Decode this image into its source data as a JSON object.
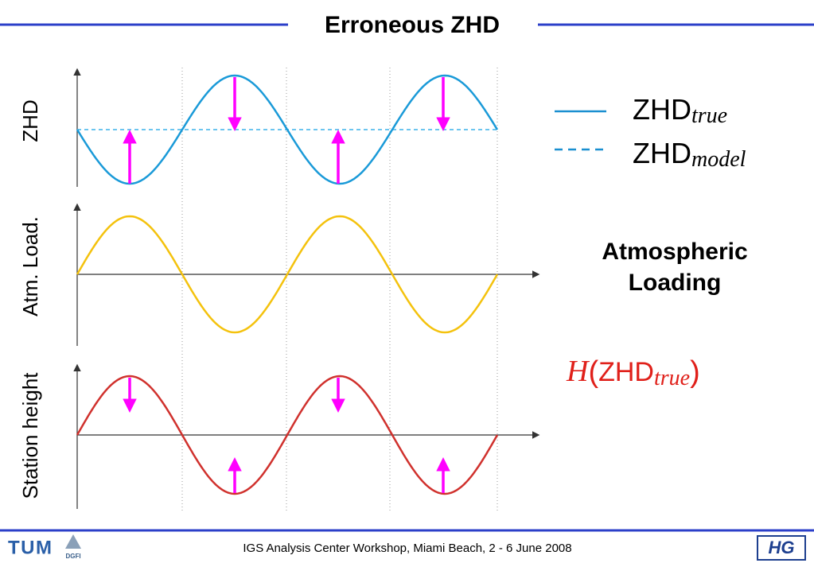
{
  "header": {
    "title": "Erroneous ZHD"
  },
  "panels": [
    {
      "label": "ZHD"
    },
    {
      "label": "Atm. Load."
    },
    {
      "label": "Station height"
    }
  ],
  "legend": [
    {
      "main": "ZHD",
      "sub": "true"
    },
    {
      "main": "ZHD",
      "sub": "model"
    }
  ],
  "annotation": {
    "lines": [
      "Atmospheric",
      "Loading"
    ]
  },
  "formula": {
    "func": "H",
    "open": "(",
    "main": "ZHD",
    "sub": "true",
    "close": ")"
  },
  "footer": {
    "text": "IGS Analysis Center Workshop, Miami Beach, 2 - 6 June 2008",
    "logo_left": "TUM",
    "logo_mid": "DGFI",
    "logo_right": "HG"
  }
}
